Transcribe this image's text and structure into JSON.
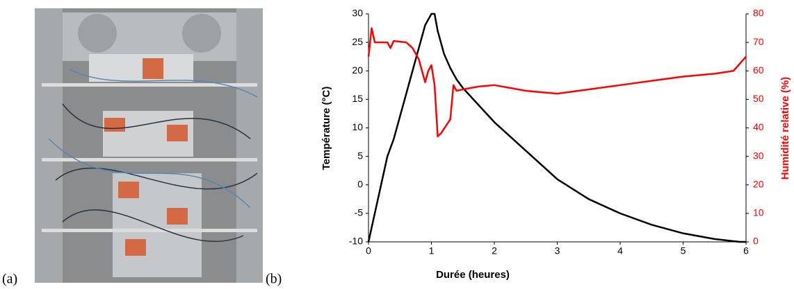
{
  "panel_labels": [
    "(a)",
    "(b)"
  ],
  "chart_data": {
    "type": "line",
    "xlabel": "Durée (heures)",
    "ylabel": "Température (°C)",
    "y2label": "Humidité relative (%)",
    "xlim": [
      0,
      6
    ],
    "xticks": [
      0,
      1,
      2,
      3,
      4,
      5,
      6
    ],
    "ylim": [
      -10,
      30
    ],
    "yticks": [
      -10,
      -5,
      0,
      5,
      10,
      15,
      20,
      25,
      30
    ],
    "y2lim": [
      0,
      80
    ],
    "y2ticks": [
      0,
      10,
      20,
      30,
      40,
      50,
      60,
      70,
      80
    ],
    "y2color": "#ff0000",
    "series": [
      {
        "name": "Température",
        "color": "#000000",
        "x": [
          0,
          0.1,
          0.2,
          0.3,
          0.4,
          0.5,
          0.6,
          0.7,
          0.8,
          0.9,
          1.0,
          1.05,
          1.1,
          1.2,
          1.3,
          1.4,
          1.5,
          1.75,
          2,
          2.5,
          3,
          3.5,
          4,
          4.5,
          5,
          5.5,
          5.9,
          6
        ],
        "values": [
          -10,
          -5,
          0,
          5,
          8,
          12,
          16,
          20,
          24,
          28,
          30,
          30,
          27,
          23,
          20.5,
          18.5,
          17,
          14,
          11,
          6,
          1,
          -2.5,
          -5,
          -7,
          -8.5,
          -9.5,
          -10,
          -10
        ]
      },
      {
        "name": "Humidité relative",
        "color": "#ff0000",
        "axis": "y2",
        "x": [
          0,
          0.05,
          0.1,
          0.3,
          0.35,
          0.4,
          0.6,
          0.7,
          0.8,
          0.9,
          0.95,
          1.0,
          1.05,
          1.1,
          1.15,
          1.3,
          1.35,
          1.4,
          1.5,
          1.75,
          2,
          2.5,
          3,
          3.5,
          4,
          4.5,
          5,
          5.5,
          5.8,
          6
        ],
        "values": [
          65,
          75,
          70,
          70,
          68,
          70.5,
          70,
          68,
          64,
          56,
          60,
          62,
          55,
          37,
          38,
          43,
          55,
          53,
          53.5,
          54.5,
          55,
          53,
          52,
          53.5,
          55,
          56.5,
          58,
          59,
          60,
          65
        ]
      }
    ]
  }
}
